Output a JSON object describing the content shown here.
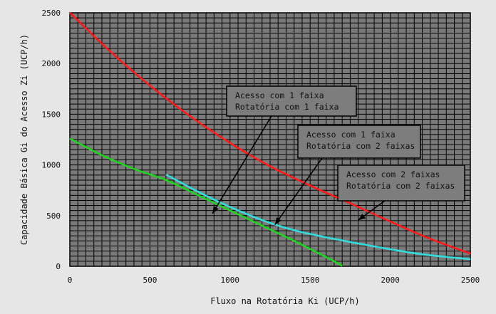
{
  "chart_data": {
    "type": "line",
    "xlabel": "Fluxo na Rotatória Ki (UCP/h)",
    "ylabel": "Capacidade Básica Gi do Acesso Zi (UCP/h)",
    "xlim": [
      0,
      2500
    ],
    "ylim": [
      0,
      2500
    ],
    "x_ticks": [
      0,
      500,
      1000,
      1500,
      2000,
      2500
    ],
    "x_tick_labels": [
      "0",
      "500",
      "1000",
      "1500",
      "2000",
      "2500"
    ],
    "y_ticks": [
      0,
      500,
      1000,
      1500,
      2000,
      2500
    ],
    "y_tick_labels": [
      "0",
      "500",
      "1000",
      "1500",
      "2000",
      "2500"
    ],
    "grid": true,
    "series": [
      {
        "color": "#ff1a1a",
        "x": [
          0,
          250,
          500,
          750,
          1000,
          1250,
          1500,
          1750,
          2000,
          2250,
          2500
        ],
        "y": [
          2500,
          2120,
          1780,
          1480,
          1215,
          985,
          795,
          620,
          440,
          270,
          125
        ]
      },
      {
        "color": "#33dddd",
        "x": [
          600,
          800,
          1000,
          1200,
          1400,
          1600,
          1800,
          2000,
          2200,
          2400,
          2500
        ],
        "y": [
          905,
          735,
          585,
          455,
          355,
          285,
          225,
          168,
          118,
          85,
          70
        ]
      },
      {
        "color": "#1ed41e",
        "x": [
          0,
          200,
          400,
          600,
          800,
          1000,
          1200,
          1400,
          1600,
          1700
        ],
        "y": [
          1260,
          1095,
          960,
          850,
          700,
          550,
          400,
          250,
          90,
          5
        ]
      }
    ],
    "annotations": [
      {
        "lines": [
          "Acesso com 1 faixa",
          "Rotatória com 1 faixa"
        ],
        "arrow_to": [
          890,
          520
        ]
      },
      {
        "lines": [
          "Acesso com 1 faixa",
          "Rotatória com 2 faixas"
        ],
        "arrow_to": [
          1280,
          410
        ]
      },
      {
        "lines": [
          "Acesso com 2 faixas",
          "Rotatória com 2 faixas"
        ],
        "arrow_to": [
          1800,
          455
        ]
      }
    ]
  },
  "colors": {
    "page_background": "#e6e6e6",
    "plot_background": "#7a7a7a",
    "grid": "#000000",
    "annotation_box": "#7d7d7d"
  }
}
